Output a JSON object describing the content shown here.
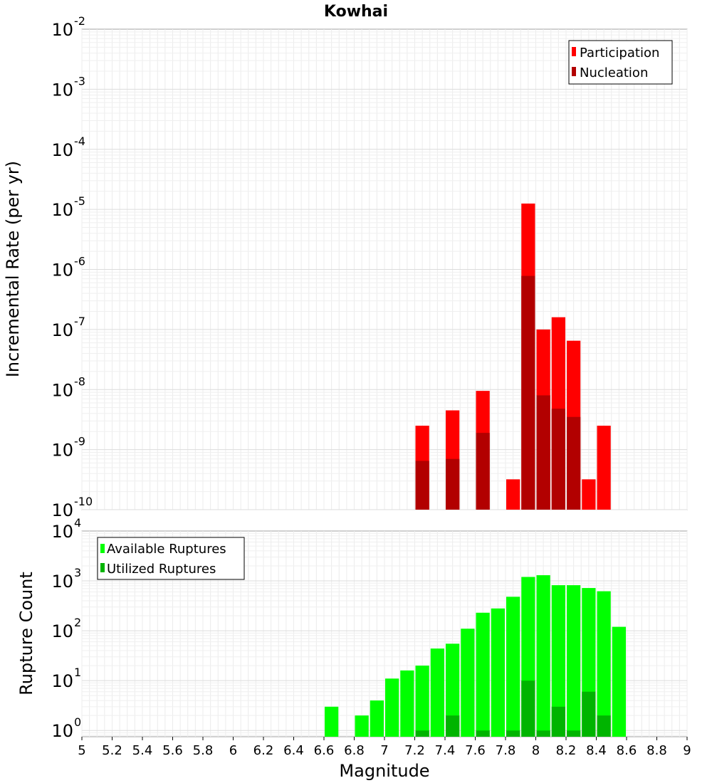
{
  "chart_data": [
    {
      "type": "bar",
      "title": "Kowhai",
      "xlabel": "",
      "ylabel": "Incremental Rate (per yr)",
      "y_scale": "log",
      "ylim": [
        1e-10,
        0.01
      ],
      "xlim": [
        5,
        9
      ],
      "y_tick_exponents": [
        "-2",
        "-3",
        "-4",
        "-5",
        "-6",
        "-7",
        "-8",
        "-9",
        "-10"
      ],
      "legend_position": "top-right",
      "series": [
        {
          "name": "Participation",
          "color": "#ff0000",
          "x": [
            7.25,
            7.45,
            7.65,
            7.85,
            7.95,
            8.05,
            8.15,
            8.25,
            8.35,
            8.45
          ],
          "values": [
            2.5e-09,
            4.5e-09,
            9.5e-09,
            3.2e-10,
            1.25e-05,
            1e-07,
            1.6e-07,
            6.5e-08,
            3.2e-10,
            2.5e-09
          ]
        },
        {
          "name": "Nucleation",
          "color": "#b20000",
          "x": [
            7.25,
            7.45,
            7.65,
            7.95,
            8.05,
            8.15,
            8.25
          ],
          "values": [
            6.5e-10,
            7e-10,
            1.9e-09,
            7.8e-07,
            8e-09,
            4.8e-09,
            3.5e-09
          ]
        }
      ]
    },
    {
      "type": "bar",
      "title": "",
      "xlabel": "Magnitude",
      "ylabel": "Rupture Count",
      "y_scale": "log",
      "ylim": [
        0.75,
        10000
      ],
      "xlim": [
        5,
        9
      ],
      "x_ticks": [
        "5",
        "5.2",
        "5.4",
        "5.6",
        "5.8",
        "6",
        "6.2",
        "6.4",
        "6.6",
        "6.8",
        "7",
        "7.2",
        "7.4",
        "7.6",
        "7.8",
        "8",
        "8.2",
        "8.4",
        "8.6",
        "8.8",
        "9"
      ],
      "y_tick_exponents": [
        "4",
        "3",
        "2",
        "1",
        "0"
      ],
      "legend_position": "top-left",
      "series": [
        {
          "name": "Available Ruptures",
          "color": "#00ff00",
          "x": [
            6.65,
            6.85,
            6.95,
            7.05,
            7.15,
            7.25,
            7.35,
            7.45,
            7.55,
            7.65,
            7.75,
            7.85,
            7.95,
            8.05,
            8.15,
            8.25,
            8.35,
            8.45,
            8.55
          ],
          "values": [
            3,
            2,
            4,
            11,
            16,
            20,
            44,
            55,
            110,
            230,
            280,
            480,
            1200,
            1300,
            820,
            820,
            720,
            620,
            120
          ]
        },
        {
          "name": "Utilized Ruptures",
          "color": "#00b400",
          "x": [
            7.25,
            7.45,
            7.65,
            7.85,
            7.95,
            8.05,
            8.15,
            8.25,
            8.35,
            8.45
          ],
          "values": [
            1,
            2,
            1,
            1,
            10,
            1,
            3,
            1,
            6,
            2
          ]
        }
      ]
    }
  ]
}
